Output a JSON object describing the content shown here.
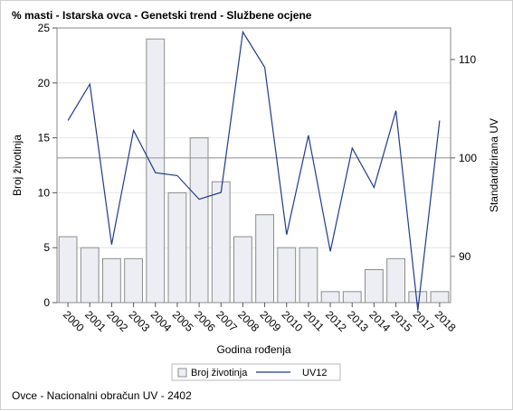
{
  "page": {
    "title": "% masti - Istarska ovca - Genetski trend - Službene ocjene",
    "footnote": "Ovce - Nacionalni obračun UV - 2402"
  },
  "chart_data": {
    "type": "bar",
    "categories": [
      "2000",
      "2001",
      "2002",
      "2003",
      "2004",
      "2005",
      "2006",
      "2007",
      "2008",
      "2009",
      "2010",
      "2011",
      "2012",
      "2013",
      "2014",
      "2015",
      "2017",
      "2018"
    ],
    "series": [
      {
        "name": "Broj životinja",
        "type": "bar",
        "axis": "left",
        "values": [
          6,
          5,
          4,
          4,
          24,
          10,
          15,
          11,
          6,
          8,
          5,
          5,
          1,
          1,
          3,
          4,
          1,
          1
        ]
      },
      {
        "name": "UV12",
        "type": "line",
        "axis": "right",
        "values": [
          103.8,
          107.5,
          91.2,
          102.8,
          98.5,
          98.2,
          95.8,
          96.5,
          112.8,
          109.2,
          92.2,
          102.3,
          90.5,
          101.0,
          97.0,
          104.8,
          84.5,
          103.8
        ]
      }
    ],
    "xlabel": "Godina rođenja",
    "ylabel": "Broj životinja",
    "y2label": "Standardizirana UV",
    "ylim": [
      0,
      25
    ],
    "y2lim": [
      85.3,
      113.2
    ],
    "yticks": [
      "0",
      "5",
      "10",
      "15",
      "20",
      "25"
    ],
    "y2ticks": [
      "90",
      "100",
      "110"
    ],
    "reference_line_y2": 100,
    "grid": true,
    "legend_position": "bottom",
    "colors": {
      "bar_fill": "#eceef3",
      "bar_stroke": "#8c8c8c",
      "line": "#1f3b8c",
      "reference": "#9a9a9a",
      "grid": "#e4e4e4"
    }
  }
}
